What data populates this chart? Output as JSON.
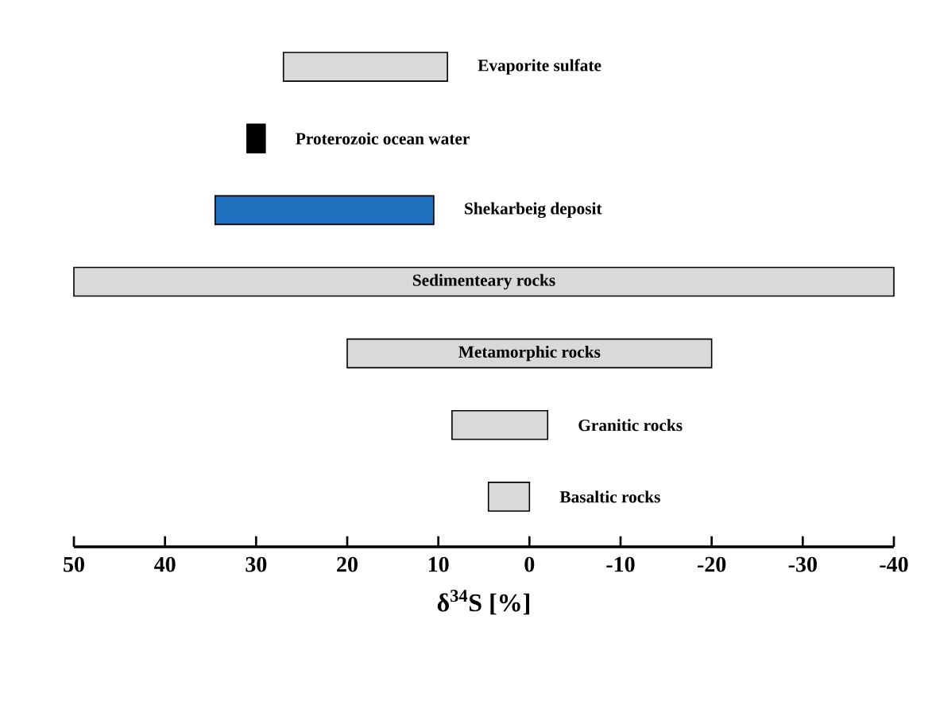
{
  "chart_data": {
    "type": "bar",
    "orientation": "horizontal",
    "categories": [
      "Evaporite sulfate",
      "Proterozoic ocean water",
      "Shekarbeig deposit",
      "Sedimenteary rocks",
      "Metamorphic rocks",
      "Granitic rocks",
      "Basaltic rocks"
    ],
    "base": [
      9,
      29,
      10.5,
      -40,
      -20,
      -2,
      0
    ],
    "values": [
      18,
      2,
      24,
      90,
      40,
      10.5,
      4.5
    ],
    "colors": [
      "#d9d9d9",
      "#000000",
      "#1f6fbf",
      "#d9d9d9",
      "#d9d9d9",
      "#d9d9d9",
      "#d9d9d9"
    ],
    "xlim": [
      50,
      -40
    ],
    "xticks": [
      50,
      40,
      30,
      20,
      10,
      0,
      -10,
      -20,
      -30,
      -40
    ],
    "xlabel": "δ$^{34}$S [%]",
    "tick_labels": "x"
  }
}
